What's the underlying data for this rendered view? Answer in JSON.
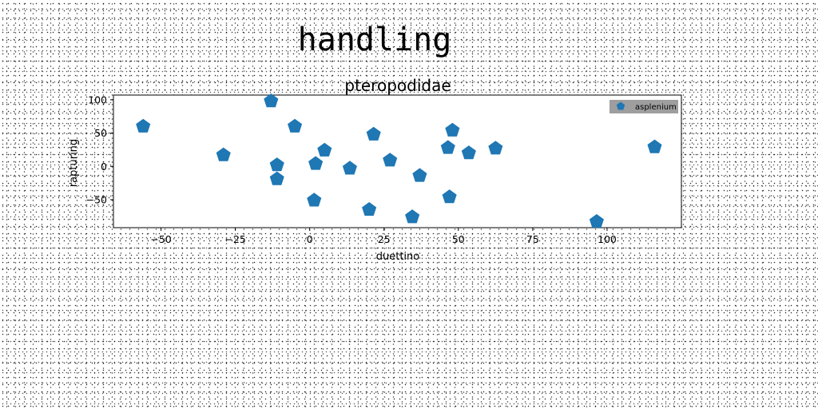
{
  "chart_data": {
    "type": "scatter",
    "suptitle": "handling",
    "title": "pteropodidae",
    "xlabel": "duettino",
    "ylabel": "rapturing",
    "xlim": [
      -66,
      125
    ],
    "ylim": [
      -92,
      107
    ],
    "xticks": [
      -50,
      -25,
      0,
      25,
      50,
      75,
      100
    ],
    "xtick_labels": [
      "−50",
      "−25",
      "0",
      "25",
      "50",
      "75",
      "100"
    ],
    "yticks": [
      -50,
      0,
      50,
      100
    ],
    "ytick_labels": [
      "−50",
      "0",
      "50",
      "100"
    ],
    "grid": false,
    "legend_position": "top-right",
    "series": [
      {
        "name": "asplenium",
        "color": "#1f77b4",
        "marker": "pentagon",
        "points": [
          [
            -56,
            60
          ],
          [
            -13,
            98
          ],
          [
            -5,
            60
          ],
          [
            -29,
            17
          ],
          [
            -11,
            2
          ],
          [
            -11,
            -19
          ],
          [
            2,
            4
          ],
          [
            5,
            24
          ],
          [
            1.5,
            -51
          ],
          [
            13.5,
            -3
          ],
          [
            21.5,
            48
          ],
          [
            20,
            -65
          ],
          [
            27,
            9
          ],
          [
            37,
            -14
          ],
          [
            34.5,
            -76
          ],
          [
            48,
            54
          ],
          [
            46.5,
            28
          ],
          [
            53.5,
            20
          ],
          [
            47,
            -46
          ],
          [
            62.5,
            27
          ],
          [
            96.5,
            -83
          ],
          [
            116,
            29
          ]
        ]
      }
    ]
  }
}
